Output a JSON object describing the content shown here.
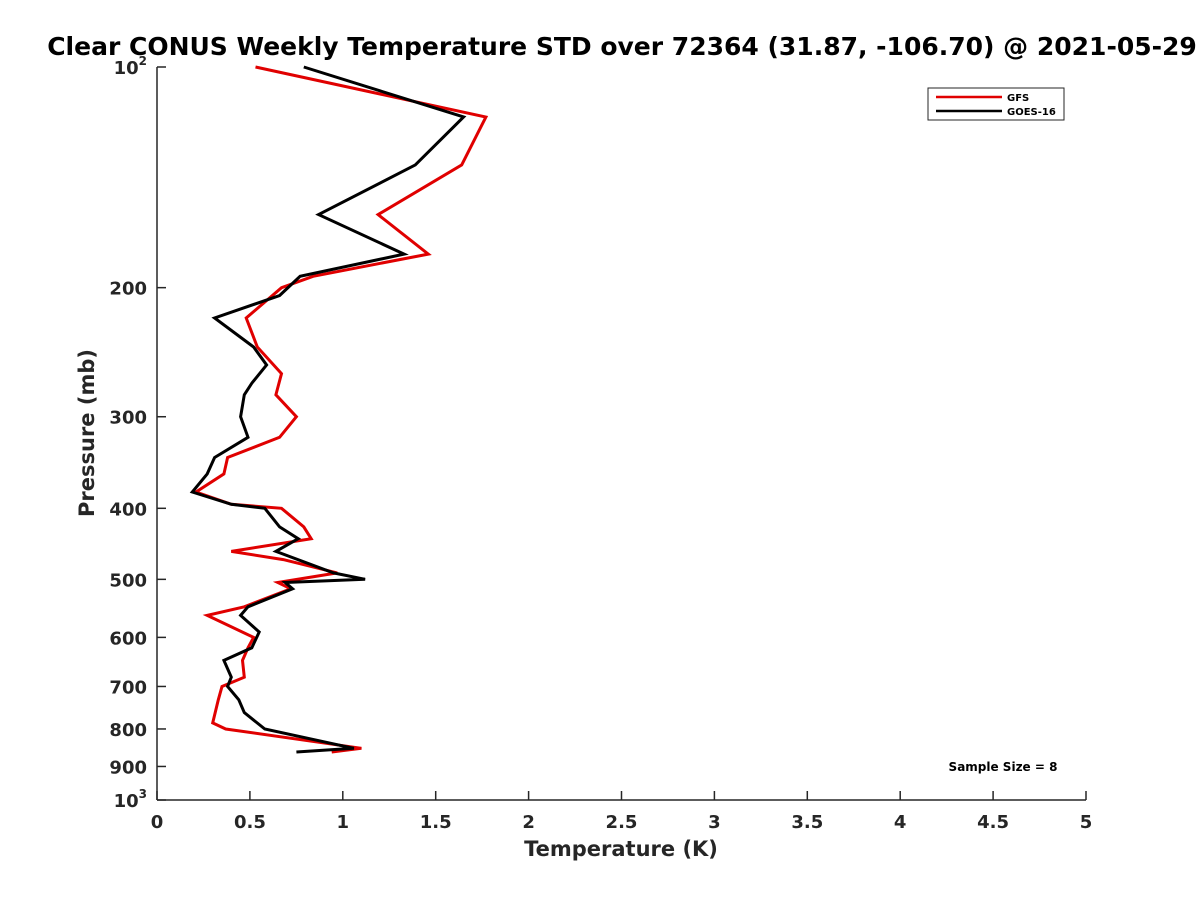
{
  "chart_data": {
    "type": "line",
    "title": "Clear CONUS Weekly Temperature STD over 72364 (31.87, -106.70) @ 2021-05-29",
    "xlabel": "Temperature (K)",
    "ylabel": "Pressure (mb)",
    "xlim": [
      0,
      5
    ],
    "ylim": [
      100,
      1000
    ],
    "y_scale": "log",
    "y_reversed": true,
    "x_ticks": [
      {
        "value": 0,
        "label": "0"
      },
      {
        "value": 0.5,
        "label": "0.5"
      },
      {
        "value": 1,
        "label": "1"
      },
      {
        "value": 1.5,
        "label": "1.5"
      },
      {
        "value": 2,
        "label": "2"
      },
      {
        "value": 2.5,
        "label": "2.5"
      },
      {
        "value": 3,
        "label": "3"
      },
      {
        "value": 3.5,
        "label": "3.5"
      },
      {
        "value": 4,
        "label": "4"
      },
      {
        "value": 4.5,
        "label": "4.5"
      },
      {
        "value": 5,
        "label": "5"
      }
    ],
    "y_ticks": [
      {
        "value": 100,
        "base": "10",
        "exp": "2"
      },
      {
        "value": 200,
        "base": "200",
        "exp": ""
      },
      {
        "value": 300,
        "base": "300",
        "exp": ""
      },
      {
        "value": 400,
        "base": "400",
        "exp": ""
      },
      {
        "value": 500,
        "base": "500",
        "exp": ""
      },
      {
        "value": 600,
        "base": "600",
        "exp": ""
      },
      {
        "value": 700,
        "base": "700",
        "exp": ""
      },
      {
        "value": 800,
        "base": "800",
        "exp": ""
      },
      {
        "value": 900,
        "base": "900",
        "exp": ""
      },
      {
        "value": 1000,
        "base": "10",
        "exp": "3"
      }
    ],
    "grid": false,
    "legend_position": "top-right",
    "annotation": "Sample Size = 8",
    "series": [
      {
        "name": "GFS",
        "color": "#e00000",
        "points": [
          [
            0.53,
            100
          ],
          [
            1.77,
            117
          ],
          [
            1.64,
            136
          ],
          [
            1.19,
            159
          ],
          [
            1.46,
            180
          ],
          [
            0.84,
            193
          ],
          [
            0.67,
            200
          ],
          [
            0.48,
            220
          ],
          [
            0.54,
            241
          ],
          [
            0.67,
            262
          ],
          [
            0.64,
            280
          ],
          [
            0.75,
            300
          ],
          [
            0.66,
            320
          ],
          [
            0.38,
            341
          ],
          [
            0.36,
            359
          ],
          [
            0.21,
            380
          ],
          [
            0.4,
            395
          ],
          [
            0.67,
            400
          ],
          [
            0.79,
            424
          ],
          [
            0.83,
            440
          ],
          [
            0.4,
            458
          ],
          [
            0.68,
            470
          ],
          [
            0.97,
            490
          ],
          [
            0.65,
            505
          ],
          [
            0.72,
            515
          ],
          [
            0.47,
            545
          ],
          [
            0.27,
            560
          ],
          [
            0.52,
            600
          ],
          [
            0.49,
            620
          ],
          [
            0.46,
            645
          ],
          [
            0.47,
            680
          ],
          [
            0.35,
            700
          ],
          [
            0.33,
            730
          ],
          [
            0.3,
            785
          ],
          [
            0.37,
            800
          ],
          [
            1.1,
            850
          ],
          [
            0.94,
            860
          ]
        ]
      },
      {
        "name": "GOES-16",
        "color": "#000000",
        "points": [
          [
            0.79,
            100
          ],
          [
            1.65,
            117
          ],
          [
            1.39,
            136
          ],
          [
            0.87,
            159
          ],
          [
            1.33,
            180
          ],
          [
            0.77,
            193
          ],
          [
            0.66,
            205
          ],
          [
            0.31,
            220
          ],
          [
            0.52,
            241
          ],
          [
            0.59,
            255
          ],
          [
            0.51,
            270
          ],
          [
            0.47,
            280
          ],
          [
            0.45,
            300
          ],
          [
            0.49,
            320
          ],
          [
            0.31,
            341
          ],
          [
            0.27,
            359
          ],
          [
            0.19,
            380
          ],
          [
            0.4,
            395
          ],
          [
            0.58,
            400
          ],
          [
            0.66,
            424
          ],
          [
            0.76,
            440
          ],
          [
            0.64,
            458
          ],
          [
            0.95,
            490
          ],
          [
            1.12,
            500
          ],
          [
            0.69,
            505
          ],
          [
            0.73,
            515
          ],
          [
            0.49,
            545
          ],
          [
            0.45,
            560
          ],
          [
            0.55,
            590
          ],
          [
            0.51,
            620
          ],
          [
            0.36,
            645
          ],
          [
            0.4,
            680
          ],
          [
            0.38,
            700
          ],
          [
            0.44,
            730
          ],
          [
            0.47,
            760
          ],
          [
            0.58,
            800
          ],
          [
            1.06,
            850
          ],
          [
            0.75,
            860
          ]
        ]
      }
    ]
  }
}
